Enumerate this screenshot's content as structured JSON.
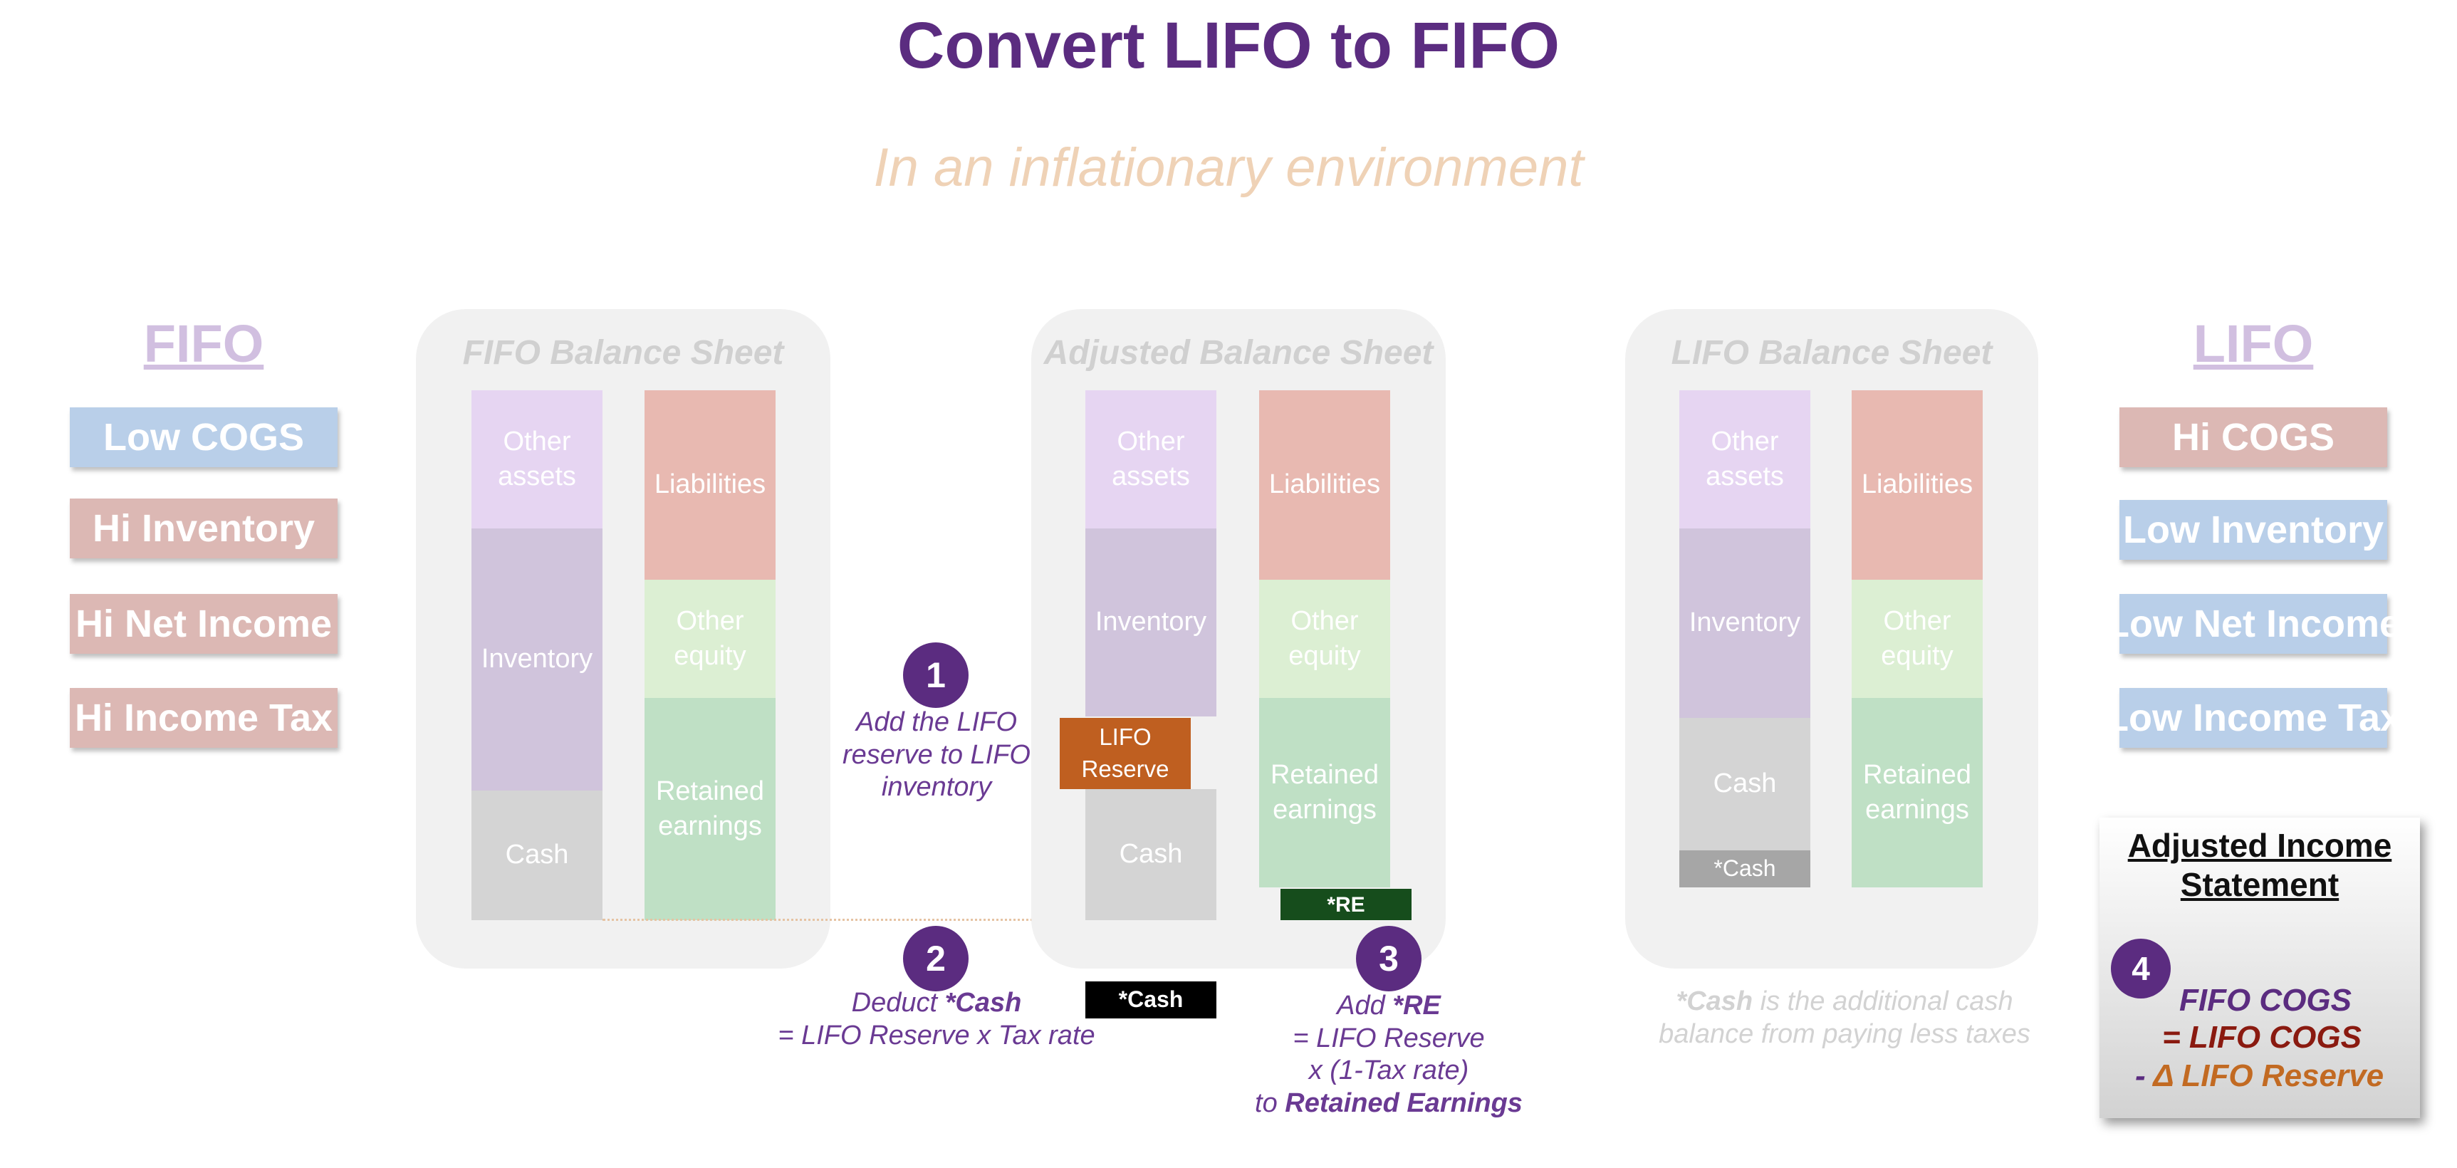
{
  "title": "Convert LIFO to FIFO",
  "subtitle": "In an inflationary environment",
  "fifo_side": {
    "heading": "FIFO",
    "items": [
      "Low COGS",
      "Hi Inventory",
      "Hi Net Income",
      "Hi Income Tax"
    ]
  },
  "lifo_side": {
    "heading": "LIFO",
    "items": [
      "Hi COGS",
      "Low Inventory",
      "Low Net Income",
      "Low Income Tax"
    ]
  },
  "fifo_sheet": {
    "title": "FIFO Balance Sheet",
    "other_assets": "Other assets",
    "inventory": "Inventory",
    "cash": "Cash",
    "liabilities": "Liabilities",
    "other_equity": "Other equity",
    "retained_earnings": "Retained earnings"
  },
  "adjusted_sheet": {
    "title": "Adjusted Balance Sheet",
    "other_assets": "Other assets",
    "inventory": "Inventory",
    "lifo_reserve": "LIFO Reserve",
    "cash": "Cash",
    "cash_tag": "*Cash",
    "liabilities": "Liabilities",
    "other_equity": "Other equity",
    "retained_earnings": "Retained earnings",
    "re_tag": "*RE"
  },
  "lifo_sheet": {
    "title": "LIFO Balance Sheet",
    "other_assets": "Other assets",
    "inventory": "Inventory",
    "cash": "Cash",
    "cash_tag": "*Cash",
    "liabilities": "Liabilities",
    "other_equity": "Other equity",
    "retained_earnings": "Retained earnings"
  },
  "steps": {
    "s1": {
      "num": "1",
      "text": "Add the LIFO reserve to LIFO inventory"
    },
    "s2": {
      "num": "2",
      "prefix": "Deduct ",
      "bold": "*Cash",
      "line2": "= LIFO Reserve x Tax rate"
    },
    "s3": {
      "num": "3",
      "prefix": "Add ",
      "bold": "*RE",
      "line2": "= LIFO Reserve",
      "line3": "x (1-Tax rate)",
      "line4_prefix": "to ",
      "line4_bold": "Retained Earnings"
    },
    "s4": {
      "num": "4"
    }
  },
  "cash_note": {
    "bold": "*Cash",
    "rest": " is the additional cash",
    "line2": "balance from paying less taxes"
  },
  "income_card": {
    "title_line1": "Adjusted Income",
    "title_line2": "Statement",
    "line1": "FIFO COGS",
    "line2": "= LIFO COGS",
    "line3_minus": "- ",
    "line3": "Δ LIFO Reserve"
  },
  "colors": {
    "title": "#5b2c80",
    "subtitle": "#efd2b6",
    "pill_blue": "#b9cfe9",
    "pill_rose": "#dcb8b4",
    "lifo_reserve": "#bf5f20",
    "re_tag": "#164d1c",
    "lifo_cogs": "#8a1a10",
    "delta_reserve": "#c26a22"
  }
}
